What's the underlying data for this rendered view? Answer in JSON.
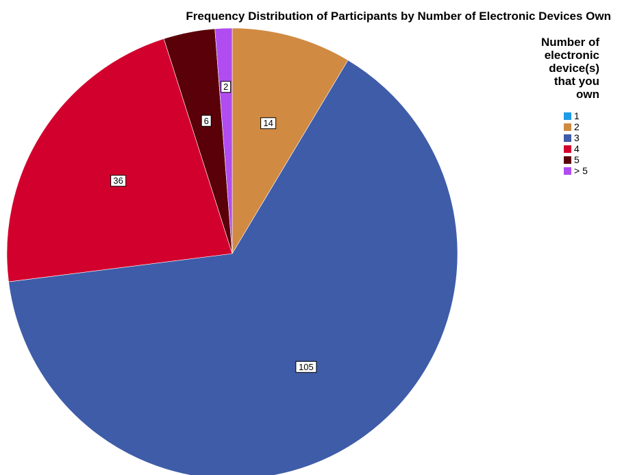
{
  "chart_data": {
    "type": "pie",
    "title": "Frequency Distribution of Participants by Number of Electronic Devices Own",
    "legend_title": "Number of electronic device(s) that you own",
    "legend_title_lines": [
      "Number of",
      "electronic",
      "device(s)",
      "that you",
      "own"
    ],
    "legend_position": "top-right",
    "start_angle_deg": 0,
    "direction": "clockwise",
    "slices": [
      {
        "label": "1",
        "value": 0,
        "color": "#1f9be8",
        "data_label": ""
      },
      {
        "label": "2",
        "value": 14,
        "color": "#d08a42",
        "data_label": "14"
      },
      {
        "label": "3",
        "value": 105,
        "color": "#3f5ca8",
        "data_label": "105"
      },
      {
        "label": "4",
        "value": 36,
        "color": "#d2002c",
        "data_label": "36"
      },
      {
        "label": "5",
        "value": 6,
        "color": "#5a0008",
        "data_label": "6"
      },
      {
        "label": "> 5",
        "value": 2,
        "color": "#b14cf0",
        "data_label": "2"
      }
    ]
  }
}
